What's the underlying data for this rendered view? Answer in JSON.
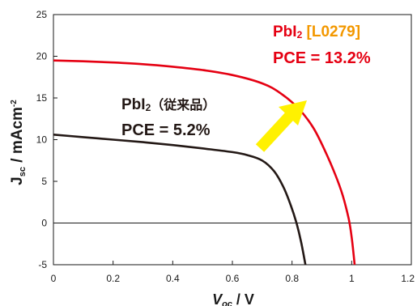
{
  "chart_data": {
    "type": "line",
    "xlim": [
      0,
      1.2
    ],
    "ylim": [
      -5,
      25
    ],
    "x_ticks": [
      "0",
      "0.2",
      "0.4",
      "0.6",
      "0.8",
      "1",
      "1.2"
    ],
    "y_ticks": [
      "-5",
      "0",
      "5",
      "10",
      "15",
      "20",
      "25"
    ],
    "x_tick_values": [
      0,
      0.2,
      0.4,
      0.6,
      0.8,
      1.0,
      1.2
    ],
    "y_tick_values": [
      -5,
      0,
      5,
      10,
      15,
      20,
      25
    ],
    "xlabel": {
      "main": "V",
      "sub": "oc",
      "rest": " / V"
    },
    "ylabel": {
      "main": "J",
      "sub": "sc",
      "rest": " / mAcm",
      "sup": "-2"
    },
    "grid": false,
    "zero_line": true,
    "series": [
      {
        "name": "PbI2 (従来品)",
        "color": "#231815",
        "points": [
          [
            0,
            10.6
          ],
          [
            0.1,
            10.3
          ],
          [
            0.2,
            10.0
          ],
          [
            0.3,
            9.7
          ],
          [
            0.4,
            9.35
          ],
          [
            0.5,
            8.95
          ],
          [
            0.6,
            8.5
          ],
          [
            0.65,
            8.15
          ],
          [
            0.7,
            7.5
          ],
          [
            0.74,
            6.2
          ],
          [
            0.77,
            4.4
          ],
          [
            0.795,
            2.2
          ],
          [
            0.815,
            0.0
          ],
          [
            0.83,
            -2.2
          ],
          [
            0.845,
            -5.0
          ]
        ]
      },
      {
        "name": "PbI2 [L0279]",
        "color": "#e50012",
        "points": [
          [
            0,
            19.5
          ],
          [
            0.1,
            19.4
          ],
          [
            0.2,
            19.25
          ],
          [
            0.3,
            19.05
          ],
          [
            0.4,
            18.75
          ],
          [
            0.5,
            18.35
          ],
          [
            0.6,
            17.75
          ],
          [
            0.7,
            16.75
          ],
          [
            0.76,
            15.6
          ],
          [
            0.82,
            13.8
          ],
          [
            0.87,
            11.5
          ],
          [
            0.91,
            8.7
          ],
          [
            0.945,
            5.8
          ],
          [
            0.97,
            3.3
          ],
          [
            0.99,
            0.5
          ],
          [
            1.0,
            -1.7
          ],
          [
            1.01,
            -5.0
          ]
        ]
      }
    ],
    "annotations": {
      "old": {
        "line1_main": "PbI",
        "line1_sub": "2",
        "line1_jp": "（従来品）",
        "line2": "PCE = 5.2%"
      },
      "new": {
        "line1_main": "PbI",
        "line1_sub": "2",
        "line1_code": " [L0279]",
        "line2": "PCE = 13.2%"
      }
    },
    "colors": {
      "old": "#231815",
      "new": "#e50012",
      "code": "#f39800",
      "arrow": "#fff100",
      "axis": "#1a1a1a"
    }
  }
}
